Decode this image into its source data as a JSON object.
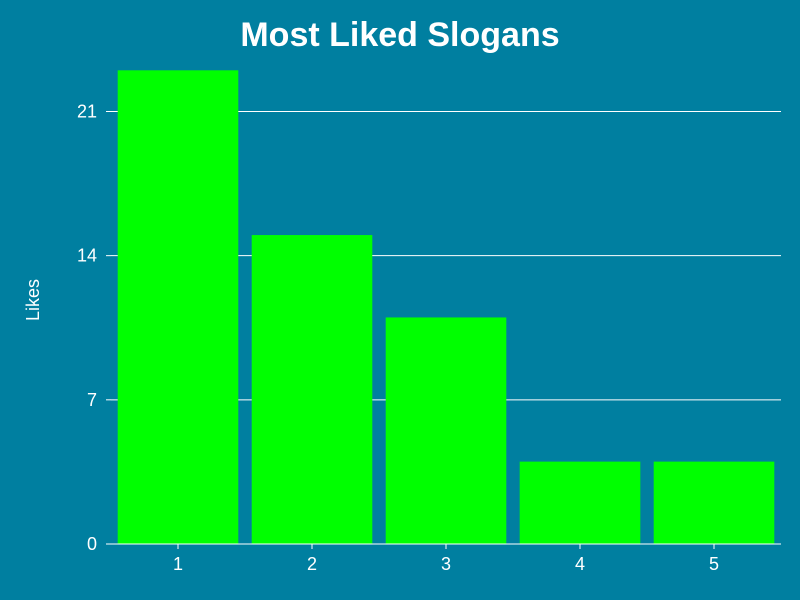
{
  "colors": {
    "background": "#007fa0",
    "bar": "#00ff00",
    "text": "#ffffff"
  },
  "chart_data": {
    "type": "bar",
    "title": "Most Liked Slogans",
    "xlabel": "",
    "ylabel": "Likes",
    "categories": [
      "1",
      "2",
      "3",
      "4",
      "5"
    ],
    "values": [
      23,
      15,
      11,
      4,
      4
    ],
    "yticks": [
      0,
      7,
      14,
      21
    ],
    "ylim": [
      0,
      23.5
    ],
    "grid": true,
    "legend": "none"
  }
}
